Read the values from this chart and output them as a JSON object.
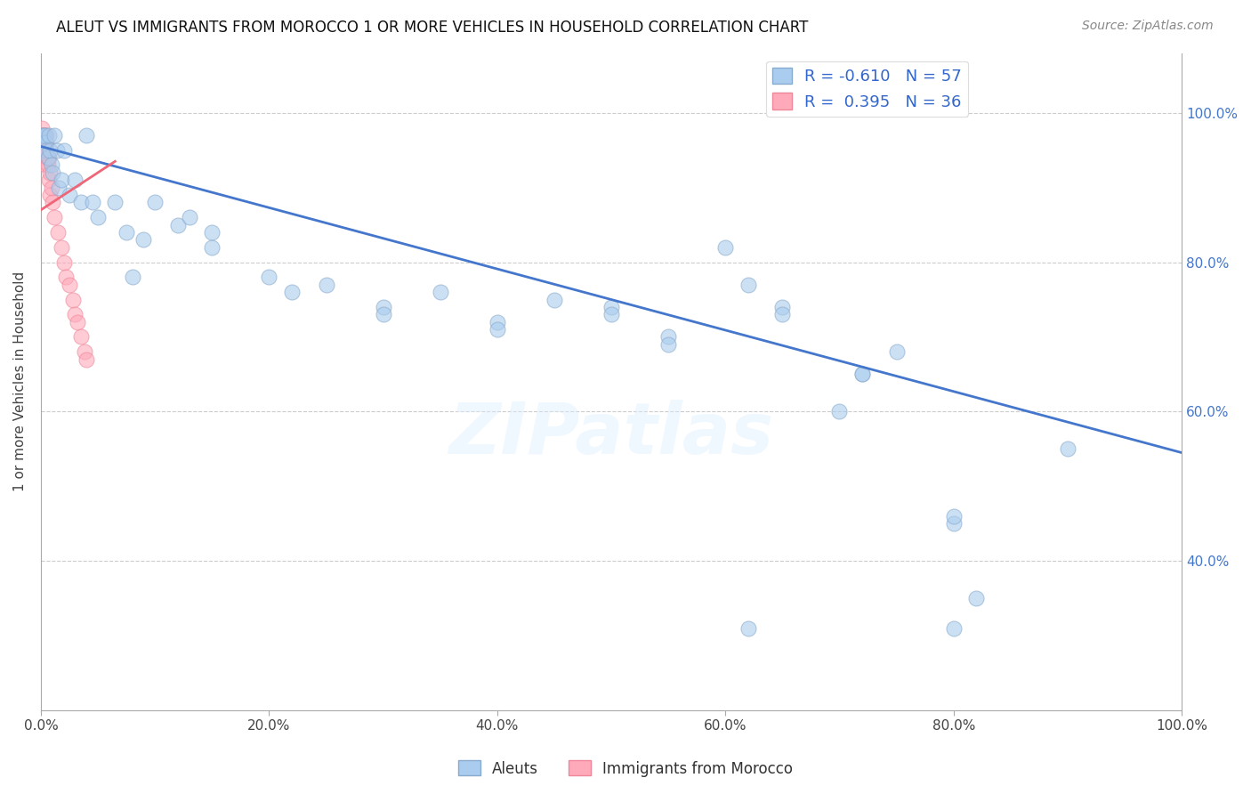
{
  "title": "ALEUT VS IMMIGRANTS FROM MOROCCO 1 OR MORE VEHICLES IN HOUSEHOLD CORRELATION CHART",
  "source": "Source: ZipAtlas.com",
  "ylabel": "1 or more Vehicles in Household",
  "legend_label_1": "Aleuts",
  "legend_label_2": "Immigrants from Morocco",
  "R1": -0.61,
  "N1": 57,
  "R2": 0.395,
  "N2": 36,
  "blue_color": "#AACCEE",
  "pink_color": "#FFAABB",
  "blue_edge_color": "#88AACC",
  "pink_edge_color": "#EE8899",
  "blue_line_color": "#4477CC",
  "pink_line_color": "#EE6677",
  "blue_scatter": [
    [
      0.001,
      0.97
    ],
    [
      0.002,
      0.97
    ],
    [
      0.003,
      0.97
    ],
    [
      0.004,
      0.96
    ],
    [
      0.005,
      0.95
    ],
    [
      0.006,
      0.94
    ],
    [
      0.007,
      0.97
    ],
    [
      0.008,
      0.95
    ],
    [
      0.009,
      0.93
    ],
    [
      0.01,
      0.92
    ],
    [
      0.012,
      0.97
    ],
    [
      0.014,
      0.95
    ],
    [
      0.016,
      0.9
    ],
    [
      0.018,
      0.91
    ],
    [
      0.02,
      0.95
    ],
    [
      0.025,
      0.89
    ],
    [
      0.03,
      0.91
    ],
    [
      0.035,
      0.88
    ],
    [
      0.04,
      0.97
    ],
    [
      0.045,
      0.88
    ],
    [
      0.05,
      0.86
    ],
    [
      0.065,
      0.88
    ],
    [
      0.075,
      0.84
    ],
    [
      0.08,
      0.78
    ],
    [
      0.09,
      0.83
    ],
    [
      0.1,
      0.88
    ],
    [
      0.12,
      0.85
    ],
    [
      0.13,
      0.86
    ],
    [
      0.15,
      0.82
    ],
    [
      0.15,
      0.84
    ],
    [
      0.2,
      0.78
    ],
    [
      0.22,
      0.76
    ],
    [
      0.25,
      0.77
    ],
    [
      0.3,
      0.74
    ],
    [
      0.3,
      0.73
    ],
    [
      0.35,
      0.76
    ],
    [
      0.4,
      0.72
    ],
    [
      0.4,
      0.71
    ],
    [
      0.45,
      0.75
    ],
    [
      0.5,
      0.74
    ],
    [
      0.5,
      0.73
    ],
    [
      0.55,
      0.7
    ],
    [
      0.55,
      0.69
    ],
    [
      0.6,
      0.82
    ],
    [
      0.62,
      0.77
    ],
    [
      0.65,
      0.74
    ],
    [
      0.65,
      0.73
    ],
    [
      0.7,
      0.6
    ],
    [
      0.72,
      0.65
    ],
    [
      0.72,
      0.65
    ],
    [
      0.75,
      0.68
    ],
    [
      0.8,
      0.45
    ],
    [
      0.8,
      0.46
    ],
    [
      0.82,
      0.35
    ],
    [
      0.9,
      0.55
    ],
    [
      0.62,
      0.31
    ],
    [
      0.8,
      0.31
    ]
  ],
  "pink_scatter": [
    [
      0.0005,
      0.97
    ],
    [
      0.001,
      0.96
    ],
    [
      0.001,
      0.97
    ],
    [
      0.001,
      0.98
    ],
    [
      0.002,
      0.96
    ],
    [
      0.002,
      0.97
    ],
    [
      0.002,
      0.95
    ],
    [
      0.003,
      0.96
    ],
    [
      0.003,
      0.95
    ],
    [
      0.003,
      0.94
    ],
    [
      0.004,
      0.95
    ],
    [
      0.004,
      0.97
    ],
    [
      0.004,
      0.93
    ],
    [
      0.005,
      0.97
    ],
    [
      0.005,
      0.95
    ],
    [
      0.005,
      0.96
    ],
    [
      0.006,
      0.93
    ],
    [
      0.006,
      0.94
    ],
    [
      0.007,
      0.94
    ],
    [
      0.007,
      0.91
    ],
    [
      0.008,
      0.92
    ],
    [
      0.008,
      0.89
    ],
    [
      0.009,
      0.9
    ],
    [
      0.01,
      0.88
    ],
    [
      0.012,
      0.86
    ],
    [
      0.015,
      0.84
    ],
    [
      0.018,
      0.82
    ],
    [
      0.02,
      0.8
    ],
    [
      0.022,
      0.78
    ],
    [
      0.025,
      0.77
    ],
    [
      0.028,
      0.75
    ],
    [
      0.03,
      0.73
    ],
    [
      0.032,
      0.72
    ],
    [
      0.035,
      0.7
    ],
    [
      0.038,
      0.68
    ],
    [
      0.04,
      0.67
    ]
  ],
  "blue_line": [
    [
      0.0,
      0.955
    ],
    [
      1.0,
      0.545
    ]
  ],
  "pink_line": [
    [
      0.0,
      0.87
    ],
    [
      0.065,
      0.935
    ]
  ],
  "watermark": "ZIPatlas",
  "xlim": [
    0.0,
    1.0
  ],
  "ylim": [
    0.2,
    1.08
  ],
  "y_ticks": [
    0.4,
    0.6,
    0.8,
    1.0
  ],
  "y_tick_labels": [
    "40.0%",
    "60.0%",
    "80.0%",
    "100.0%"
  ],
  "x_ticks": [
    0.0,
    0.2,
    0.4,
    0.6,
    0.8,
    1.0
  ],
  "x_tick_labels": [
    "0.0%",
    "20.0%",
    "40.0%",
    "60.0%",
    "80.0%",
    "100.0%"
  ],
  "grid_ticks": [
    0.4,
    0.6,
    0.8,
    1.0
  ]
}
